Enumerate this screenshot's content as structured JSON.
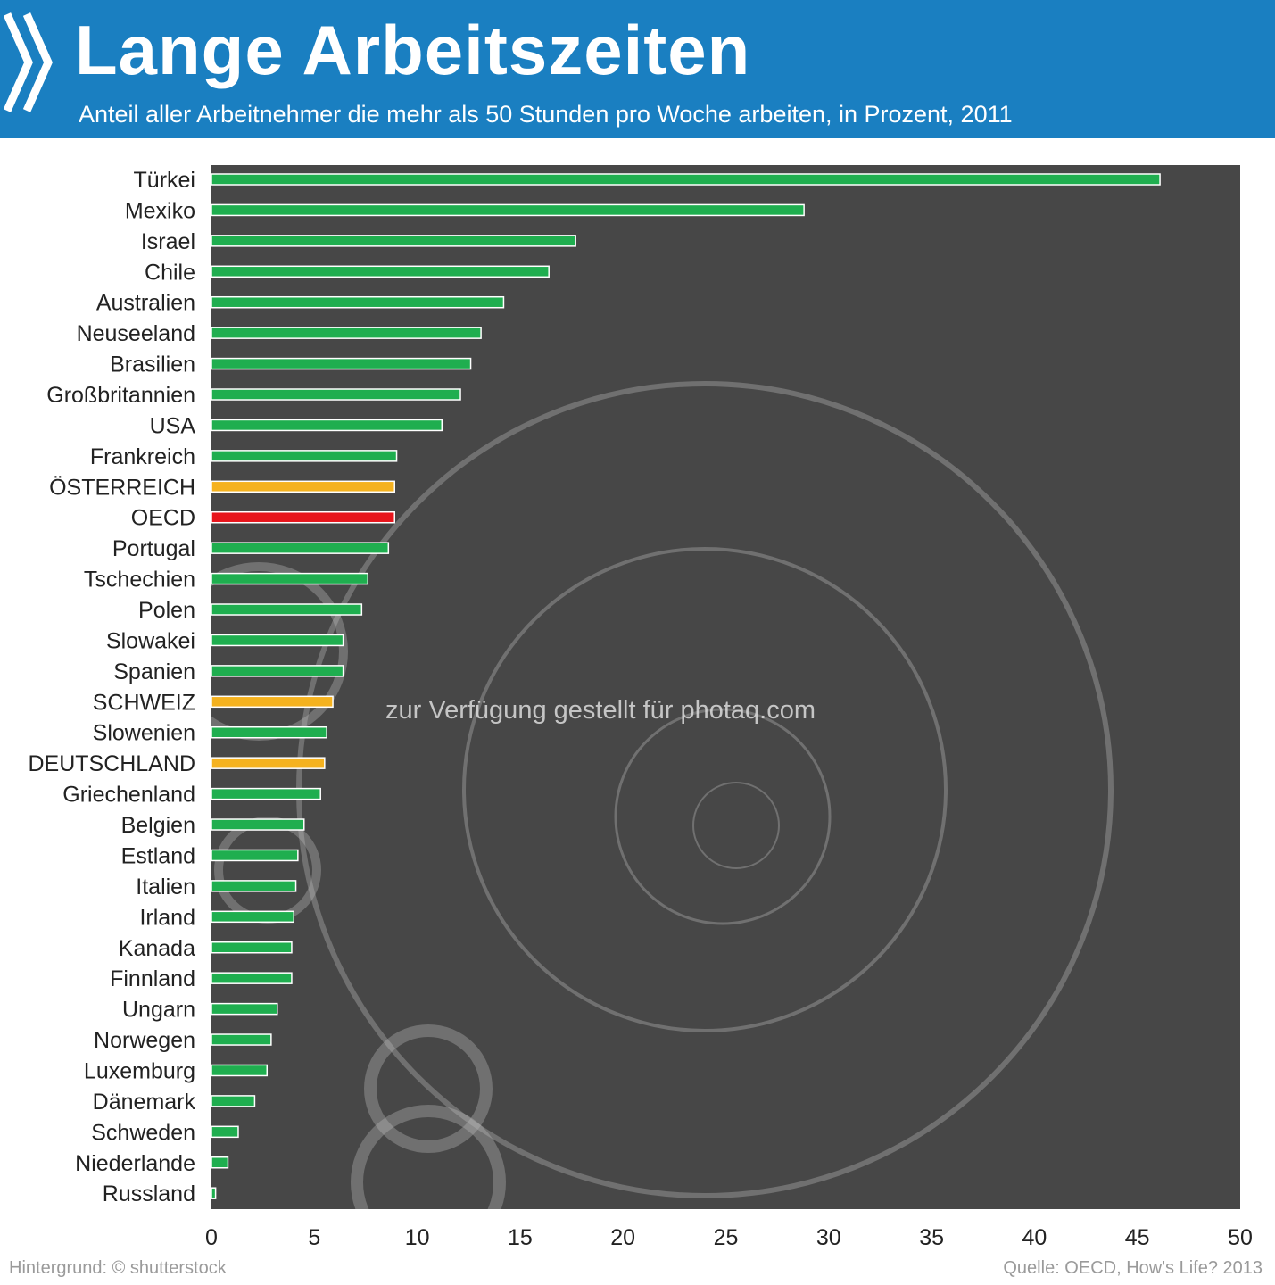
{
  "header": {
    "title": "Lange Arbeitszeiten",
    "subtitle": "Anteil aller Arbeitnehmer die mehr als 50 Stunden pro Woche arbeiten, in Prozent, 2011",
    "chevron_icon": "double-chevron-right-icon"
  },
  "colors": {
    "header_bg": "#1a7fc1",
    "plot_bg": "#474747",
    "bar_default": "#1fae4f",
    "bar_highlight": "#f5b21f",
    "bar_oecd": "#e8141b"
  },
  "chart_data": {
    "type": "bar",
    "orientation": "horizontal",
    "title": "Lange Arbeitszeiten",
    "subtitle": "Anteil aller Arbeitnehmer die mehr als 50 Stunden pro Woche arbeiten, in Prozent, 2011",
    "xlim": [
      0,
      50
    ],
    "xticks": [
      0,
      5,
      10,
      15,
      20,
      25,
      30,
      35,
      40,
      45,
      50
    ],
    "grid": false,
    "categories": [
      "Türkei",
      "Mexiko",
      "Israel",
      "Chile",
      "Australien",
      "Neuseeland",
      "Brasilien",
      "Großbritannien",
      "USA",
      "Frankreich",
      "ÖSTERREICH",
      "OECD",
      "Portugal",
      "Tschechien",
      "Polen",
      "Slowakei",
      "Spanien",
      "SCHWEIZ",
      "Slowenien",
      "DEUTSCHLAND",
      "Griechenland",
      "Belgien",
      "Estland",
      "Italien",
      "Irland",
      "Kanada",
      "Finnland",
      "Ungarn",
      "Norwegen",
      "Luxemburg",
      "Dänemark",
      "Schweden",
      "Niederlande",
      "Russland"
    ],
    "values": [
      46.1,
      28.8,
      17.7,
      16.4,
      14.2,
      13.1,
      12.6,
      12.1,
      11.2,
      9.0,
      8.9,
      8.9,
      8.6,
      7.6,
      7.3,
      6.4,
      6.4,
      5.9,
      5.6,
      5.5,
      5.3,
      4.5,
      4.2,
      4.1,
      4.0,
      3.9,
      3.9,
      3.2,
      2.9,
      2.7,
      2.1,
      1.3,
      0.8,
      0.2
    ],
    "highlight": [
      "ÖSTERREICH",
      "SCHWEIZ",
      "DEUTSCHLAND"
    ],
    "reference": "OECD"
  },
  "footer": {
    "left": "Hintergrund: © shutterstock",
    "right": "Quelle: OECD, How's Life? 2013"
  },
  "watermark": "zur Verfügung gestellt für photaq.com"
}
